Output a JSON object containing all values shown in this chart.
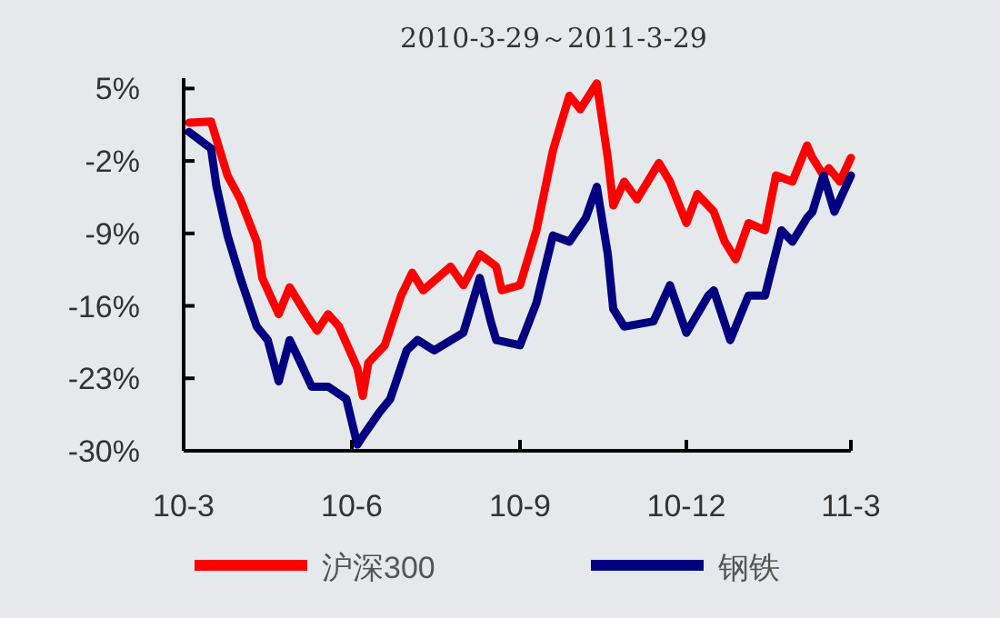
{
  "chart_data": {
    "type": "line",
    "title": "2010-3-29～2011-3-29",
    "xlim": [
      "2010-03-29",
      "2011-03-29"
    ],
    "xticks": [
      {
        "value": "2010-03-29",
        "label": "10-3"
      },
      {
        "value": "2010-06-29",
        "label": "10-6"
      },
      {
        "value": "2010-09-29",
        "label": "10-9"
      },
      {
        "value": "2010-12-29",
        "label": "10-12"
      },
      {
        "value": "2011-03-29",
        "label": "11-3"
      }
    ],
    "ylim": [
      -30,
      6
    ],
    "yticks": [
      {
        "value": 5,
        "label": "5%"
      },
      {
        "value": -2,
        "label": "-2%"
      },
      {
        "value": -9,
        "label": "-9%"
      },
      {
        "value": -16,
        "label": "-16%"
      },
      {
        "value": -23,
        "label": "-23%"
      },
      {
        "value": -30,
        "label": "-30%"
      }
    ],
    "grid": false,
    "legend": "bottom",
    "marker": "none",
    "line_style": "solid",
    "series": [
      {
        "name": "沪深300",
        "color": "#ff0000",
        "x": [
          "2010-04-01",
          "2010-04-13",
          "2010-04-22",
          "2010-04-29",
          "2010-05-08",
          "2010-05-11",
          "2010-05-20",
          "2010-05-26",
          "2010-06-04",
          "2010-06-10",
          "2010-06-16",
          "2010-06-22",
          "2010-07-02",
          "2010-07-05",
          "2010-07-08",
          "2010-07-17",
          "2010-07-26",
          "2010-08-01",
          "2010-08-07",
          "2010-08-22",
          "2010-08-29",
          "2010-09-07",
          "2010-09-16",
          "2010-09-19",
          "2010-09-29",
          "2010-10-08",
          "2010-10-17",
          "2010-10-20",
          "2010-10-26",
          "2010-11-01",
          "2010-11-10",
          "2010-11-16",
          "2010-11-19",
          "2010-11-25",
          "2010-12-02",
          "2010-12-14",
          "2010-12-20",
          "2010-12-29",
          "2011-01-04",
          "2011-01-13",
          "2011-01-19",
          "2011-01-25",
          "2011-02-01",
          "2011-02-10",
          "2011-02-16",
          "2011-02-25",
          "2011-03-05",
          "2011-03-08",
          "2011-03-14",
          "2011-03-17",
          "2011-03-23",
          "2011-03-29"
        ],
        "values": [
          1.7,
          1.8,
          -3.4,
          -5.7,
          -9.8,
          -13.3,
          -16.8,
          -14.2,
          -16.8,
          -18.4,
          -16.8,
          -18,
          -22,
          -24.7,
          -21.5,
          -19.8,
          -15,
          -12.8,
          -14.5,
          -12.2,
          -14,
          -11,
          -12.2,
          -14.5,
          -14,
          -8.7,
          -1,
          0.8,
          4.3,
          3,
          5.5,
          -1.7,
          -6.3,
          -4,
          -5.7,
          -2.2,
          -4,
          -8,
          -5.2,
          -6.9,
          -9.8,
          -11.5,
          -8,
          -8.7,
          -3.4,
          -4,
          -0.5,
          -1.7,
          -3.4,
          -2.7,
          -4,
          -1.7
        ]
      },
      {
        "name": "钢铁",
        "color": "#000080",
        "x": [
          "2010-04-01",
          "2010-04-13",
          "2010-04-16",
          "2010-04-22",
          "2010-04-29",
          "2010-05-08",
          "2010-05-14",
          "2010-05-20",
          "2010-05-26",
          "2010-06-01",
          "2010-06-07",
          "2010-06-16",
          "2010-06-26",
          "2010-07-02",
          "2010-07-05",
          "2010-07-14",
          "2010-07-20",
          "2010-07-29",
          "2010-08-04",
          "2010-08-13",
          "2010-08-29",
          "2010-09-07",
          "2010-09-13",
          "2010-09-16",
          "2010-09-29",
          "2010-10-08",
          "2010-10-17",
          "2010-10-26",
          "2010-11-04",
          "2010-11-10",
          "2010-11-16",
          "2010-11-19",
          "2010-11-25",
          "2010-12-11",
          "2010-12-20",
          "2010-12-29",
          "2011-01-10",
          "2011-01-13",
          "2011-01-22",
          "2011-02-01",
          "2011-02-10",
          "2011-02-19",
          "2011-02-25",
          "2011-03-05",
          "2011-03-08",
          "2011-03-14",
          "2011-03-20",
          "2011-03-29"
        ],
        "values": [
          0.8,
          -0.8,
          -4.5,
          -9.2,
          -13.3,
          -18,
          -19.3,
          -23.3,
          -19.3,
          -21.5,
          -23.8,
          -23.8,
          -25,
          -29.4,
          -28.6,
          -26.3,
          -25,
          -20.3,
          -19.3,
          -20.3,
          -18.6,
          -13.3,
          -17.5,
          -19.3,
          -19.8,
          -15.7,
          -9.2,
          -9.8,
          -7.5,
          -4.5,
          -11,
          -16.3,
          -18,
          -17.5,
          -14,
          -18.6,
          -15,
          -14.5,
          -19.3,
          -15,
          -15,
          -8.7,
          -9.8,
          -7.5,
          -6.9,
          -3.4,
          -6.9,
          -3.4
        ]
      }
    ]
  }
}
